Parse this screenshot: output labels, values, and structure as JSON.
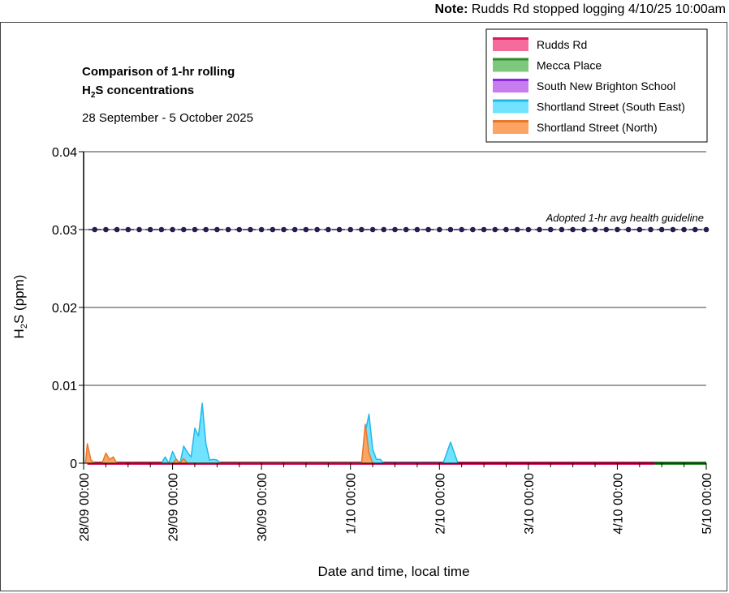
{
  "note": {
    "label": "Note:",
    "text": "Rudds Rd stopped logging 4/10/25 10:00am"
  },
  "chart_data": {
    "type": "area",
    "title_line1": "Comparison of 1-hr rolling",
    "title_line2_prefix": "H",
    "title_line2_sub": "2",
    "title_line2_suffix": "S concentrations",
    "subtitle": "28 September - 5 October 2025",
    "xlabel": "Date and time, local time",
    "ylabel_prefix": "H",
    "ylabel_sub": "2",
    "ylabel_suffix": "S (ppm)",
    "ylim": [
      0,
      0.04
    ],
    "yticks": [
      0,
      0.01,
      0.02,
      0.03,
      0.04
    ],
    "ytick_labels": [
      "0",
      "0.01",
      "0.02",
      "0.03",
      "0.04"
    ],
    "xlim": [
      "2025-09-28 00:00",
      "2025-10-05 00:00"
    ],
    "xtick_labels": [
      "28/09 00:00",
      "29/09 00:00",
      "30/09 00:00",
      "1/10 00:00",
      "2/10 00:00",
      "3/10 00:00",
      "4/10 00:00",
      "5/10 00:00"
    ],
    "grid": "horizontal",
    "legend_position": "top-right",
    "guideline": {
      "value": 0.03,
      "label": "Adopted 1-hr avg health guideline",
      "color": "#2a1a4f"
    },
    "series": [
      {
        "name": "Rudds Rd",
        "color": "#f56b9b",
        "edge": "#d81b60",
        "points": [
          [
            "2025-09-28 01:00",
            0
          ],
          [
            "2025-10-04 10:00",
            0
          ]
        ]
      },
      {
        "name": "Mecca Place",
        "color": "#7ec87e",
        "edge": "#2e8b2e",
        "points": [
          [
            "2025-10-04 10:00",
            0
          ],
          [
            "2025-10-05 00:00",
            0
          ]
        ]
      },
      {
        "name": "South New Brighton School",
        "color": "#c77cf0",
        "edge": "#8a2be2",
        "points": []
      },
      {
        "name": "Shortland Street (South East)",
        "color": "#6fe3ff",
        "edge": "#22b8e8",
        "points": [
          [
            "2025-09-28 21:00",
            0
          ],
          [
            "2025-09-28 22:00",
            0.0008
          ],
          [
            "2025-09-28 23:00",
            0
          ],
          [
            "2025-09-29 00:00",
            0.0015
          ],
          [
            "2025-09-29 01:00",
            0.0005
          ],
          [
            "2025-09-29 02:00",
            0
          ],
          [
            "2025-09-29 03:00",
            0.0022
          ],
          [
            "2025-09-29 04:00",
            0.0014
          ],
          [
            "2025-09-29 05:00",
            0.0008
          ],
          [
            "2025-09-29 06:00",
            0.0045
          ],
          [
            "2025-09-29 07:00",
            0.0035
          ],
          [
            "2025-09-29 08:00",
            0.0077
          ],
          [
            "2025-09-29 09:00",
            0.0025
          ],
          [
            "2025-09-29 10:00",
            0.0004
          ],
          [
            "2025-09-29 11:00",
            0.0005
          ],
          [
            "2025-09-29 12:00",
            0.0004
          ],
          [
            "2025-09-29 13:00",
            0
          ],
          [
            "2025-10-01 03:00",
            0
          ],
          [
            "2025-10-01 04:00",
            0.004
          ],
          [
            "2025-10-01 05:00",
            0.0063
          ],
          [
            "2025-10-01 06:00",
            0.0018
          ],
          [
            "2025-10-01 07:00",
            0.0005
          ],
          [
            "2025-10-01 08:00",
            0.0005
          ],
          [
            "2025-10-01 09:00",
            0
          ],
          [
            "2025-10-02 01:00",
            0
          ],
          [
            "2025-10-02 03:00",
            0.0027
          ],
          [
            "2025-10-02 05:00",
            0
          ]
        ]
      },
      {
        "name": "Shortland Street (North)",
        "color": "#fba464",
        "edge": "#e8782a",
        "points": [
          [
            "2025-09-28 00:30",
            0
          ],
          [
            "2025-09-28 01:00",
            0.0025
          ],
          [
            "2025-09-28 02:00",
            0.0004
          ],
          [
            "2025-09-28 03:00",
            0
          ],
          [
            "2025-09-28 05:00",
            0
          ],
          [
            "2025-09-28 06:00",
            0.0013
          ],
          [
            "2025-09-28 07:00",
            0.0005
          ],
          [
            "2025-09-28 08:00",
            0.0008
          ],
          [
            "2025-09-28 09:00",
            0
          ],
          [
            "2025-09-29 00:00",
            0
          ],
          [
            "2025-09-29 01:00",
            0.0005
          ],
          [
            "2025-09-29 02:00",
            0
          ],
          [
            "2025-09-29 03:00",
            0.0006
          ],
          [
            "2025-09-29 04:00",
            0
          ],
          [
            "2025-10-01 03:00",
            0
          ],
          [
            "2025-10-01 04:00",
            0.005
          ],
          [
            "2025-10-01 05:00",
            0.0013
          ],
          [
            "2025-10-01 06:00",
            0
          ]
        ]
      }
    ]
  }
}
